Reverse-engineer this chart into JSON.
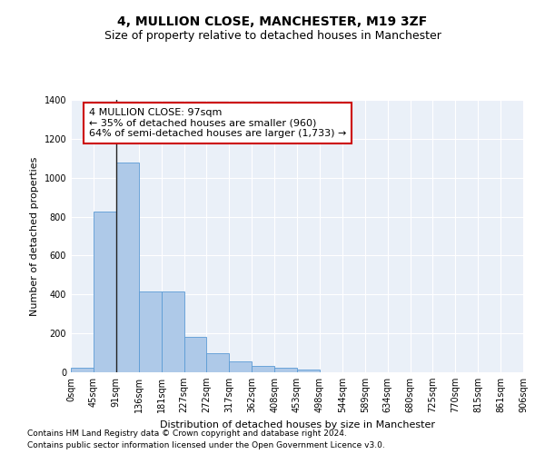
{
  "title": "4, MULLION CLOSE, MANCHESTER, M19 3ZF",
  "subtitle": "Size of property relative to detached houses in Manchester",
  "xlabel": "Distribution of detached houses by size in Manchester",
  "ylabel": "Number of detached properties",
  "footnote1": "Contains HM Land Registry data © Crown copyright and database right 2024.",
  "footnote2": "Contains public sector information licensed under the Open Government Licence v3.0.",
  "annotation_title": "4 MULLION CLOSE: 97sqm",
  "annotation_line1": "← 35% of detached houses are smaller (960)",
  "annotation_line2": "64% of semi-detached houses are larger (1,733) →",
  "bar_values": [
    25,
    825,
    1080,
    415,
    415,
    183,
    100,
    55,
    35,
    25,
    15,
    0,
    0,
    0,
    0,
    0,
    0,
    0,
    0,
    0
  ],
  "bin_labels": [
    "0sqm",
    "45sqm",
    "91sqm",
    "136sqm",
    "181sqm",
    "227sqm",
    "272sqm",
    "317sqm",
    "362sqm",
    "408sqm",
    "453sqm",
    "498sqm",
    "544sqm",
    "589sqm",
    "634sqm",
    "680sqm",
    "725sqm",
    "770sqm",
    "815sqm",
    "861sqm",
    "906sqm"
  ],
  "n_bins": 20,
  "bar_color": "#aec9e8",
  "bar_edge_color": "#5b9bd5",
  "vline_x": 2,
  "vline_color": "#222222",
  "ylim": [
    0,
    1400
  ],
  "yticks": [
    0,
    200,
    400,
    600,
    800,
    1000,
    1200,
    1400
  ],
  "annotation_box_color": "#ffffff",
  "annotation_box_edge_color": "#cc0000",
  "bg_color": "#eaf0f8",
  "grid_color": "#ffffff",
  "title_fontsize": 10,
  "subtitle_fontsize": 9,
  "axis_label_fontsize": 8,
  "tick_fontsize": 7,
  "annotation_fontsize": 8,
  "footnote_fontsize": 6.5
}
